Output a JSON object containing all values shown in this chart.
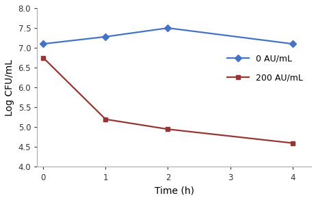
{
  "series": [
    {
      "label": "0 AU/mL",
      "x": [
        0,
        1,
        2,
        4
      ],
      "y": [
        7.1,
        7.28,
        7.5,
        7.1
      ],
      "color": "#4472C4",
      "marker": "D",
      "markersize": 5,
      "linewidth": 1.6
    },
    {
      "label": "200 AU/mL",
      "x": [
        0,
        1,
        2,
        4
      ],
      "y": [
        6.75,
        5.2,
        4.95,
        4.6
      ],
      "color": "#943634",
      "marker": "s",
      "markersize": 5,
      "linewidth": 1.6
    }
  ],
  "xlabel": "Time (h)",
  "ylabel": "Log CFU/mL",
  "xlim": [
    -0.1,
    4.3
  ],
  "ylim": [
    4,
    8
  ],
  "xticks": [
    0,
    1,
    2,
    3,
    4
  ],
  "yticks": [
    4,
    4.5,
    5,
    5.5,
    6,
    6.5,
    7,
    7.5,
    8
  ],
  "legend_loc": "center right",
  "background_color": "#ffffff",
  "spine_color": "#aaaaaa",
  "tick_fontsize": 8.5,
  "label_fontsize": 10
}
